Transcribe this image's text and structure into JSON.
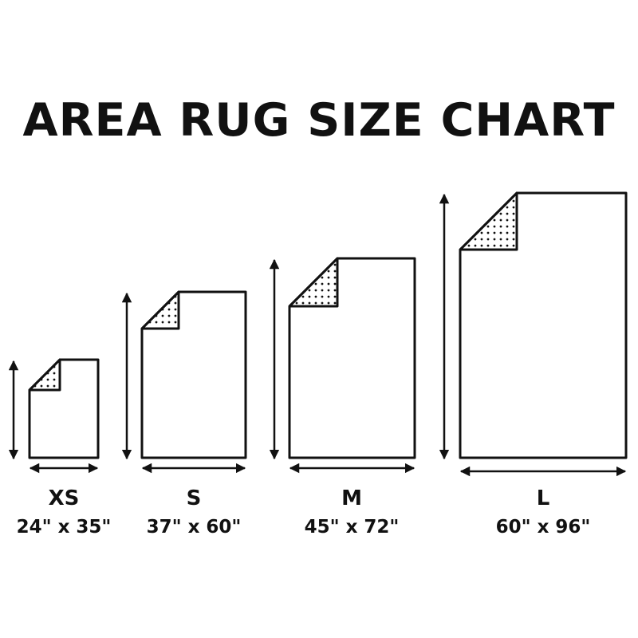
{
  "title": "AREA RUG SIZE CHART",
  "rugs": [
    {
      "size": "XS",
      "dimensions": "24\" x 35\"",
      "width_in": 24,
      "length_in": 35
    },
    {
      "size": "S",
      "dimensions": "37\" x 60\"",
      "width_in": 37,
      "length_in": 60
    },
    {
      "size": "M",
      "dimensions": "45\" x 72\"",
      "width_in": 45,
      "length_in": 72
    },
    {
      "size": "L",
      "dimensions": "60\" x 96\"",
      "width_in": 60,
      "length_in": 96
    }
  ],
  "colors": {
    "ink": "#111111",
    "background": "#ffffff"
  }
}
